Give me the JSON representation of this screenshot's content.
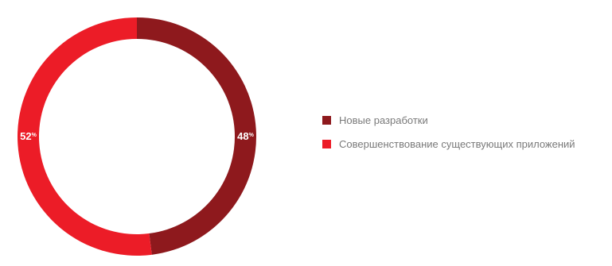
{
  "chart_data": {
    "type": "pie",
    "variant": "donut",
    "slices": [
      {
        "label": "Новые разработки",
        "value": 48,
        "color": "#8e191d",
        "pct_text": "48",
        "unit": "%"
      },
      {
        "label": "Совершенствование существующих приложений",
        "value": 52,
        "color": "#ec1c27",
        "pct_text": "52",
        "unit": "%"
      }
    ],
    "legend_position": "right"
  }
}
